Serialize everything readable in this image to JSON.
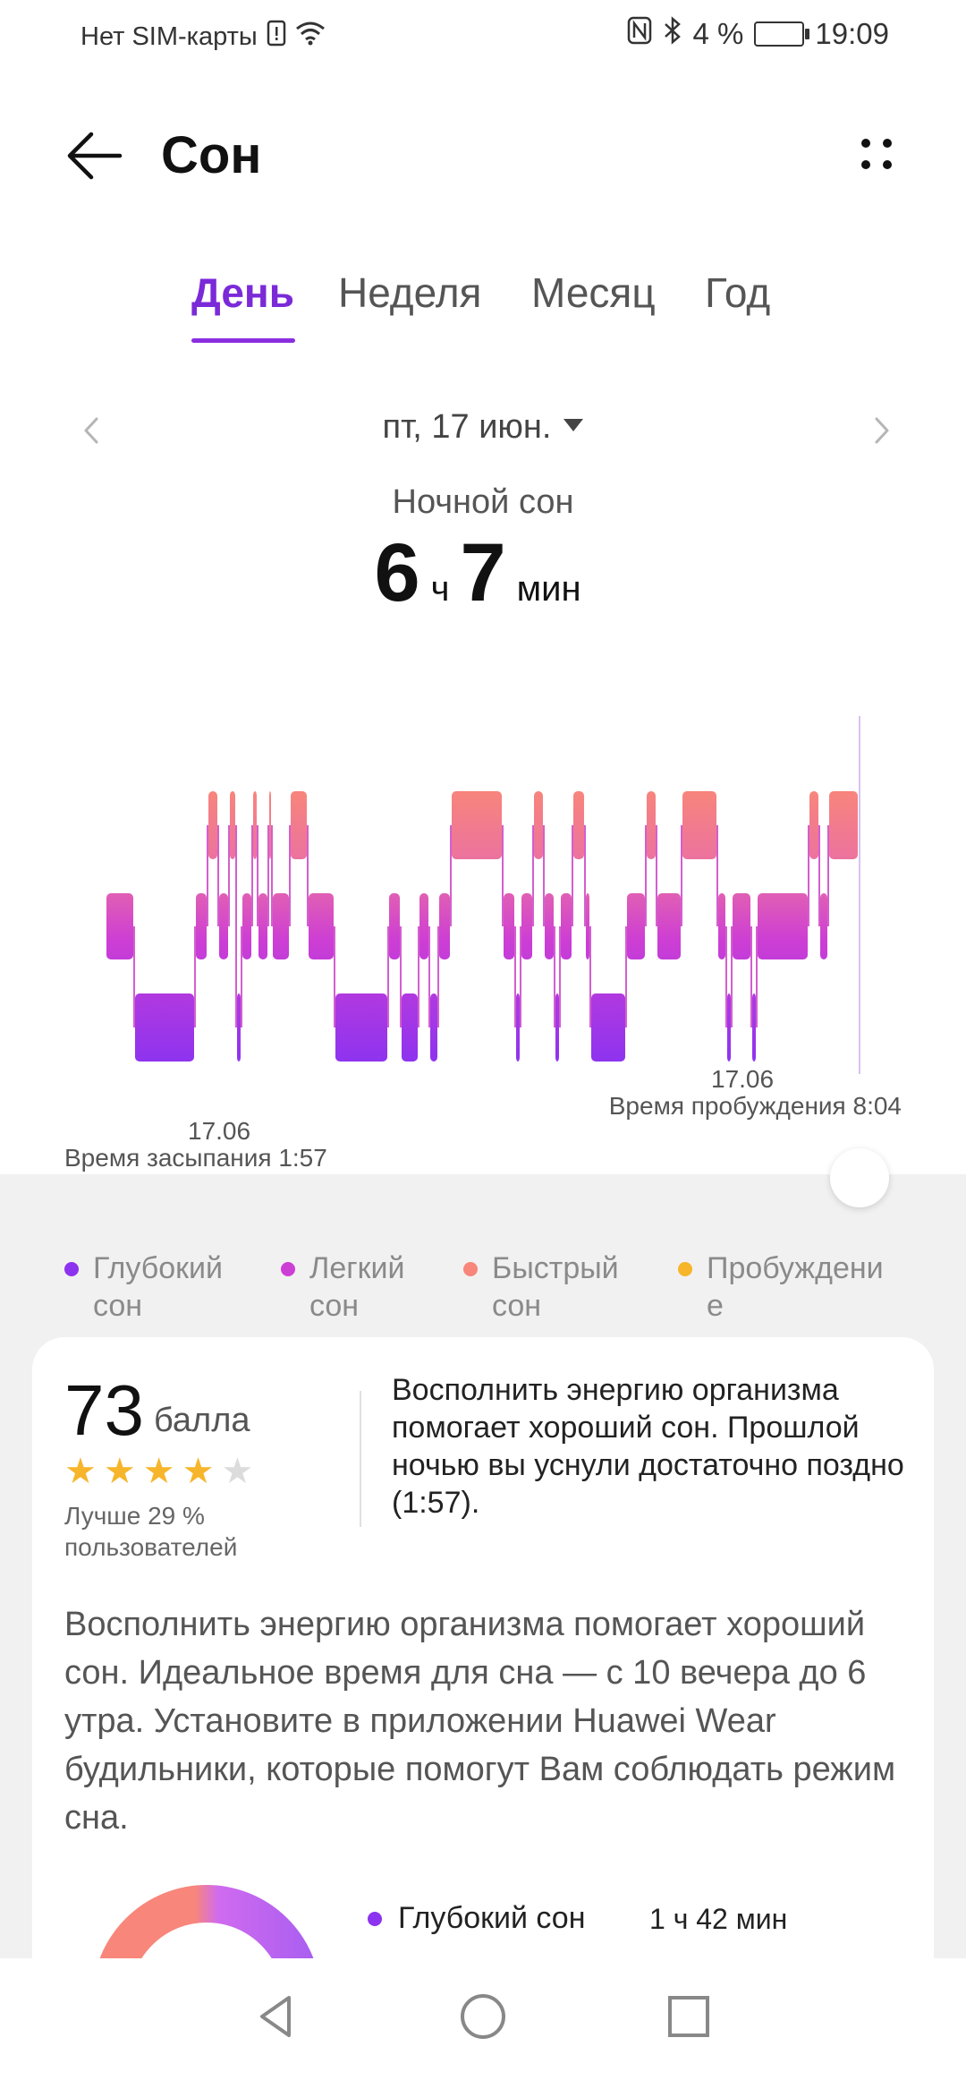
{
  "status": {
    "carrier": "Нет SIM-карты",
    "battery": "4 %",
    "time": "19:09"
  },
  "header": {
    "title": "Сон"
  },
  "tabs": [
    {
      "label": "День",
      "active": true
    },
    {
      "label": "Неделя",
      "active": false
    },
    {
      "label": "Месяц",
      "active": false
    },
    {
      "label": "Год",
      "active": false
    }
  ],
  "date_nav": {
    "label": "пт, 17 июн."
  },
  "summary": {
    "label": "Ночной сон",
    "hours": "6",
    "hours_unit": "ч",
    "minutes": "7",
    "minutes_unit": "мин"
  },
  "chart": {
    "wake_date": "17.06",
    "wake_label": "Время пробуждения 8:04",
    "sleep_date": "17.06",
    "sleep_label": "Время засыпания 1:57",
    "colors": {
      "deep": "#8c33f0",
      "light": "#cd3ed4",
      "rem": "#f8867a",
      "awake": "#f6b52a"
    }
  },
  "legend": [
    {
      "line1": "Глубокий",
      "line2": "сон",
      "color": "#8c33f0"
    },
    {
      "line1": "Легкий",
      "line2": "сон",
      "color": "#cd3ed4"
    },
    {
      "line1": "Быстрый",
      "line2": "сон",
      "color": "#f8867a"
    },
    {
      "line1": "Пробуждени",
      "line2": "е",
      "color": "#f6b52a"
    }
  ],
  "score": {
    "value": "73",
    "unit": "балла",
    "stars": 4,
    "max_stars": 5,
    "better_line1": "Лучше 29 %",
    "better_line2": "пользователей",
    "description": "Восполнить энергию организма помогает хороший сон. Прошлой ночью вы уснули достаточно поздно (1:57)."
  },
  "advice": "Восполнить энергию организма помогает хороший сон. Идеальное время для сна — с 10 вечера до 6 утра. Установите в приложении Huawei Wear будильники, которые помогут Вам соблюдать режим сна.",
  "breakdown": {
    "label": "Глубокий сон",
    "value": "1 ч 42 мин",
    "color": "#8c33f0"
  }
}
